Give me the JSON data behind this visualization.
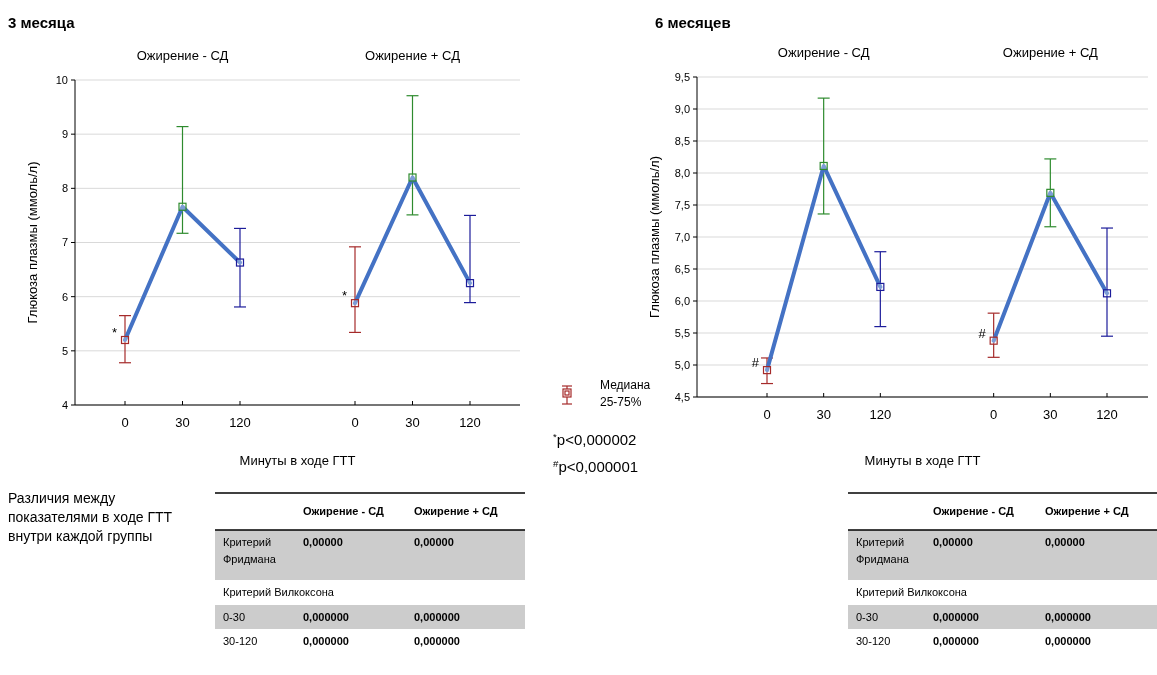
{
  "chart_data": [
    {
      "type": "line",
      "title": "3 месяца",
      "xlabel": "Минуты в ходе ГТТ",
      "ylabel": "Глюкоза плазмы (ммоль/л)",
      "categories": [
        "0",
        "30",
        "120",
        null,
        "0",
        "30",
        "120"
      ],
      "ylim": [
        4,
        10
      ],
      "yticks": [
        4,
        5,
        6,
        7,
        8,
        9,
        10
      ],
      "grid": "y",
      "marker": "square",
      "series": [
        {
          "color": "#4472c4",
          "colors": [
            "#a52a2a",
            "#2e8b2e",
            "#1c1c9a",
            null,
            "#a52a2a",
            "#2e8b2e",
            "#1c1c9a"
          ],
          "values": [
            5.2,
            7.66,
            6.63,
            null,
            5.88,
            8.2,
            6.25
          ],
          "errors": [
            [
              4.78,
              5.65
            ],
            [
              7.17,
              9.14
            ],
            [
              5.81,
              7.26
            ],
            null,
            [
              5.34,
              6.92
            ],
            [
              7.51,
              9.71
            ],
            [
              5.89,
              7.5
            ]
          ]
        }
      ],
      "annotations": [
        "Ожирение - СД",
        "Ожирение + СД",
        "*",
        "*",
        "Медиана",
        "25-75%",
        "$^{*}$p<0,000002",
        "$^{#}$p<0,000001"
      ]
    },
    {
      "type": "line",
      "title": "6 месяцев",
      "xlabel": "Минуты в ходе ГТТ",
      "ylabel": "Глюкоза плазмы (ммоль/л)",
      "categories": [
        "0",
        "30",
        "120",
        null,
        "0",
        "30",
        "120"
      ],
      "ylim": [
        4.5,
        9.5
      ],
      "yticks": [
        {
          "value": 4.5,
          "label": "4,5"
        },
        {
          "value": 5,
          "label": "5,0"
        },
        {
          "value": 5.5,
          "label": "5,5"
        },
        {
          "value": 6,
          "label": "6,0"
        },
        {
          "value": 6.5,
          "label": "6,5"
        },
        {
          "value": 7,
          "label": "7,0"
        },
        {
          "value": 7.5,
          "label": "7,5"
        },
        {
          "value": 8,
          "label": "8,0"
        },
        {
          "value": 8.5,
          "label": "8,5"
        },
        {
          "value": 9,
          "label": "9,0"
        },
        {
          "value": 9.5,
          "label": "9,5"
        }
      ],
      "grid": "y",
      "marker": "square",
      "series": [
        {
          "color": "#4472c4",
          "colors": [
            "#a52a2a",
            "#2e8b2e",
            "#1c1c9a",
            null,
            "#a52a2a",
            "#2e8b2e",
            "#1c1c9a"
          ],
          "values": [
            4.92,
            8.11,
            6.22,
            null,
            5.38,
            7.69,
            6.12
          ],
          "errors": [
            [
              4.71,
              5.11
            ],
            [
              7.36,
              9.17
            ],
            [
              5.6,
              6.77
            ],
            null,
            [
              5.12,
              5.81
            ],
            [
              7.16,
              8.22
            ],
            [
              5.45,
              7.14
            ]
          ]
        }
      ],
      "annotations": [
        "Ожирение - СД",
        "Ожирение + СД",
        "#",
        "#"
      ]
    },
    {
      "type": "other",
      "title": "Различия между показателями в ходе ГТТ внутри каждой группы",
      "categories": [
        "Ожирение - СД",
        "Ожирение + СД"
      ],
      "y_categories": [
        "Критерий Фридмана",
        "Критерий Вилкоксона",
        "0-30",
        "30-120"
      ],
      "cell_labels": [
        [
          "0,00000",
          "0,00000"
        ],
        [
          null,
          null
        ],
        [
          "0,000000",
          "0,000000"
        ],
        [
          "0,000000",
          "0,000000"
        ]
      ]
    },
    {
      "type": "other",
      "categories": [
        "Ожирение - СД",
        "Ожирение + СД"
      ],
      "y_categories": [
        "Критерий Фридмана",
        "Критерий Вилкоксона",
        "0-30",
        "30-120"
      ],
      "cell_labels": [
        [
          "0,00000",
          "0,00000"
        ],
        [
          null,
          null
        ],
        [
          "0,000000",
          "0,000000"
        ],
        [
          "0,000000",
          "0,000000"
        ]
      ]
    }
  ]
}
